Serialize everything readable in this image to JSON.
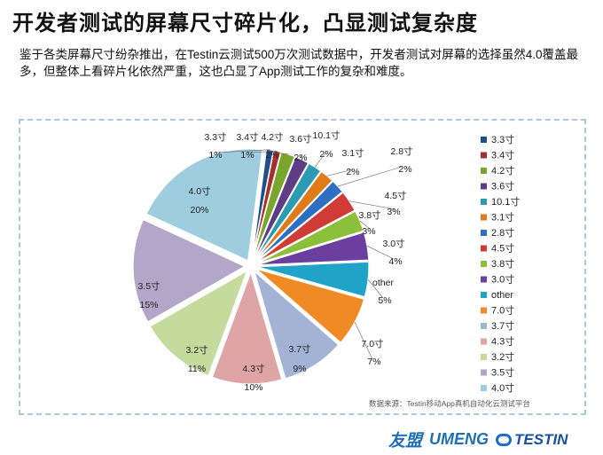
{
  "title": "开发者测试的屏幕尺寸碎片化，凸显测试复杂度",
  "description": "鉴于各类屏幕尺寸纷杂推出，在Testin云测试500万次测试数据中，开发者测试对屏幕的选择虽然4.0覆盖最多，但整体上看碎片化依然严重，这也凸显了App测试工作的复杂和难度。",
  "source": "数据来源：Testin移动App真机自动化云测试平台",
  "logos": {
    "youmeng": "友盟",
    "umeng": "UMENG",
    "testin": "TESTIN"
  },
  "chart_data": {
    "type": "pie",
    "title": "",
    "slices": [
      {
        "label": "3.3寸",
        "value": 1,
        "value_label": "1%",
        "color": "#1f4f8a"
      },
      {
        "label": "3.4寸",
        "value": 1,
        "value_label": "1%",
        "color": "#a8302c"
      },
      {
        "label": "4.2寸",
        "value": 2,
        "value_label": "2%",
        "color": "#7aa62e"
      },
      {
        "label": "3.6寸",
        "value": 2,
        "value_label": "2%",
        "color": "#5e3d86"
      },
      {
        "label": "10.1寸",
        "value": 2,
        "value_label": "2%",
        "color": "#2a9bb3"
      },
      {
        "label": "3.1寸",
        "value": 2,
        "value_label": "2%",
        "color": "#e07b1a"
      },
      {
        "label": "2.8寸",
        "value": 2,
        "value_label": "2%",
        "color": "#2e6fc4"
      },
      {
        "label": "4.5寸",
        "value": 3,
        "value_label": "3%",
        "color": "#d03b36"
      },
      {
        "label": "3.8寸",
        "value": 3,
        "value_label": "3%",
        "color": "#8cbf3a"
      },
      {
        "label": "3.0寸",
        "value": 4,
        "value_label": "4%",
        "color": "#6a3fa0"
      },
      {
        "label": "other",
        "value": 5,
        "value_label": "5%",
        "color": "#1fa3c6"
      },
      {
        "label": "7.0寸",
        "value": 7,
        "value_label": "7%",
        "color": "#f08a24"
      },
      {
        "label": "3.7寸",
        "value": 9,
        "value_label": "9%",
        "color": "#a2b3d6"
      },
      {
        "label": "4.3寸",
        "value": 10,
        "value_label": "10%",
        "color": "#dea4a6"
      },
      {
        "label": "3.2寸",
        "value": 11,
        "value_label": "11%",
        "color": "#c5db9e"
      },
      {
        "label": "3.5寸",
        "value": 15,
        "value_label": "15%",
        "color": "#b4a6c8"
      },
      {
        "label": "4.0寸",
        "value": 20,
        "value_label": "20%",
        "color": "#9fcde0"
      }
    ],
    "legend_position": "right"
  }
}
